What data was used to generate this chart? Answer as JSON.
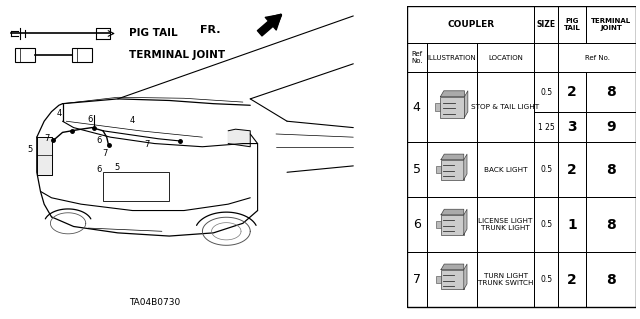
{
  "part_code": "TA04B0730",
  "bg_color": "#ffffff",
  "text_color": "#000000",
  "table": {
    "rows": [
      {
        "ref": "4",
        "location": "STOP & TAIL LIGHT",
        "entries": [
          {
            "size": "0.5",
            "pig_tail": "2",
            "terminal_joint": "8"
          },
          {
            "size": "1 25",
            "pig_tail": "3",
            "terminal_joint": "9"
          }
        ]
      },
      {
        "ref": "5",
        "location": "BACK LIGHT",
        "entries": [
          {
            "size": "0.5",
            "pig_tail": "2",
            "terminal_joint": "8"
          }
        ]
      },
      {
        "ref": "6",
        "location": "LICENSE LIGHT\nTRUNK LIGHT",
        "entries": [
          {
            "size": "0.5",
            "pig_tail": "1",
            "terminal_joint": "8"
          }
        ]
      },
      {
        "ref": "7",
        "location": "TURN LIGHT\nTRUNK SWITCH",
        "entries": [
          {
            "size": "0.5",
            "pig_tail": "2",
            "terminal_joint": "8"
          }
        ]
      }
    ]
  }
}
